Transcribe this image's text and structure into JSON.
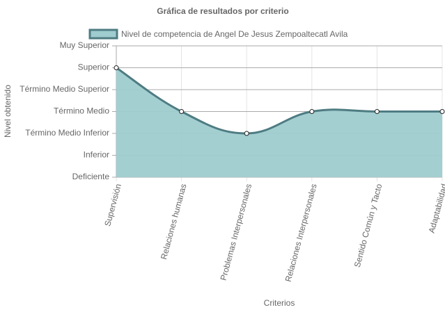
{
  "chart_data": {
    "type": "line",
    "title": "Gráfica de resultados por criterio",
    "x_label": "Criterios",
    "y_label": "Nivel obtenido",
    "categories": [
      "Supervisión",
      "Relaciones humanas",
      "Problemas Interpersonales",
      "Relaciones Interpersonales",
      "Sentido Común y Tacto",
      "Adaptabilidad"
    ],
    "series": [
      {
        "name": "Nivel de competencia de Angel De Jesus Zempoaltecatl Avila",
        "color": "#4e7c82",
        "fill": "#9fcccf",
        "values": [
          6,
          4,
          3,
          4,
          4,
          4
        ]
      }
    ],
    "ylim": [
      1,
      7
    ],
    "yticks": [
      {
        "value": 1,
        "label": "Deficiente"
      },
      {
        "value": 2,
        "label": "Inferior"
      },
      {
        "value": 3,
        "label": "Término Medio Inferior"
      },
      {
        "value": 4,
        "label": "Término Medio"
      },
      {
        "value": 5,
        "label": "Término Medio Superior"
      },
      {
        "value": 6,
        "label": "Superior"
      },
      {
        "value": 7,
        "label": "Muy Superior"
      }
    ],
    "grid": true
  }
}
